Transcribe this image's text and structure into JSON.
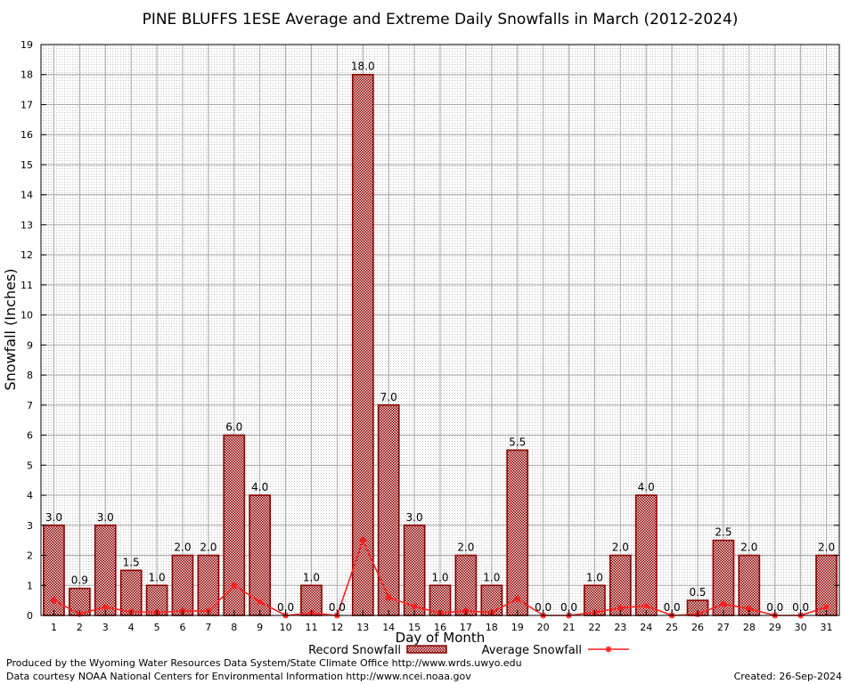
{
  "chart_data": {
    "type": "bar",
    "title": "PINE BLUFFS 1ESE Average and Extreme Daily Snowfalls in March (2012-2024)",
    "xlabel": "Day of Month",
    "ylabel": "Snowfall (Inches)",
    "ylim": [
      0,
      19
    ],
    "yticks": [
      "0",
      "1",
      "2",
      "3",
      "4",
      "5",
      "6",
      "7",
      "8",
      "9",
      "10",
      "11",
      "12",
      "13",
      "14",
      "15",
      "16",
      "17",
      "18",
      "19"
    ],
    "grid": true,
    "legend_position": "bottom",
    "categories": [
      "1",
      "2",
      "3",
      "4",
      "5",
      "6",
      "7",
      "8",
      "9",
      "10",
      "11",
      "12",
      "13",
      "14",
      "15",
      "16",
      "17",
      "18",
      "19",
      "20",
      "21",
      "22",
      "23",
      "24",
      "25",
      "26",
      "27",
      "28",
      "29",
      "30",
      "31"
    ],
    "series": [
      {
        "name": "Record Snowfall",
        "kind": "bar",
        "color": "#8b0000",
        "values": [
          3.0,
          0.9,
          3.0,
          1.5,
          1.0,
          2.0,
          2.0,
          6.0,
          4.0,
          0.0,
          1.0,
          0.0,
          18.0,
          7.0,
          3.0,
          1.0,
          2.0,
          1.0,
          5.5,
          0.0,
          0.0,
          1.0,
          2.0,
          4.0,
          0.0,
          0.5,
          2.5,
          2.0,
          0.0,
          0.0,
          2.0
        ],
        "labels": [
          "3.0",
          "0.9",
          "3.0",
          "1.5",
          "1.0",
          "2.0",
          "2.0",
          "6.0",
          "4.0",
          "0.0",
          "1.0",
          "0.0",
          "18.0",
          "7.0",
          "3.0",
          "1.0",
          "2.0",
          "1.0",
          "5.5",
          "0.0",
          "0.0",
          "1.0",
          "2.0",
          "4.0",
          "0.0",
          "0.5",
          "2.5",
          "2.0",
          "0.0",
          "0.0",
          "2.0"
        ]
      },
      {
        "name": "Average Snowfall",
        "kind": "line",
        "color": "#ff2020",
        "values": [
          0.5,
          0.05,
          0.28,
          0.12,
          0.1,
          0.15,
          0.15,
          1.0,
          0.45,
          0.0,
          0.08,
          0.0,
          2.5,
          0.6,
          0.3,
          0.08,
          0.15,
          0.1,
          0.55,
          0.0,
          0.0,
          0.1,
          0.25,
          0.32,
          0.0,
          0.04,
          0.38,
          0.22,
          0.0,
          0.0,
          0.28
        ]
      }
    ]
  },
  "footer": {
    "credit_line1": "Produced by the Wyoming Water Resources Data System/State Climate Office http://www.wrds.uwyo.edu",
    "credit_line2": "Data courtesy NOAA National Centers for Environmental Information http://www.ncei.noaa.gov",
    "created": "Created:  26-Sep-2024"
  }
}
